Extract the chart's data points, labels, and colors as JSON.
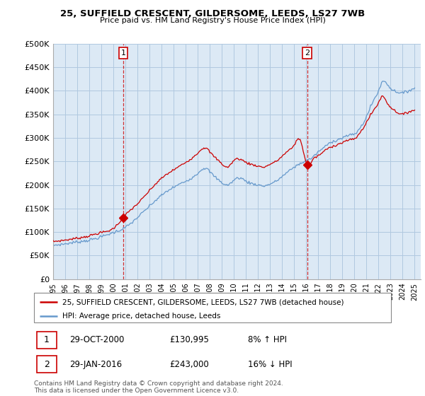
{
  "title": "25, SUFFIELD CRESCENT, GILDERSOME, LEEDS, LS27 7WB",
  "subtitle": "Price paid vs. HM Land Registry's House Price Index (HPI)",
  "background_color": "#ffffff",
  "plot_bg_color": "#dce9f5",
  "grid_color": "#b0c8e0",
  "ylim": [
    0,
    500000
  ],
  "yticks": [
    0,
    50000,
    100000,
    150000,
    200000,
    250000,
    300000,
    350000,
    400000,
    450000,
    500000
  ],
  "ytick_labels": [
    "£0",
    "£50K",
    "£100K",
    "£150K",
    "£200K",
    "£250K",
    "£300K",
    "£350K",
    "£400K",
    "£450K",
    "£500K"
  ],
  "hpi_color": "#6699cc",
  "price_color": "#cc0000",
  "marker_color": "#cc0000",
  "vline_color": "#cc0000",
  "annotation_box_color": "#cc0000",
  "legend_label_price": "25, SUFFIELD CRESCENT, GILDERSOME, LEEDS, LS27 7WB (detached house)",
  "legend_label_hpi": "HPI: Average price, detached house, Leeds",
  "sale1_date": "29-OCT-2000",
  "sale1_price": "£130,995",
  "sale1_hpi": "8% ↑ HPI",
  "sale2_date": "29-JAN-2016",
  "sale2_price": "£243,000",
  "sale2_hpi": "16% ↓ HPI",
  "footnote": "Contains HM Land Registry data © Crown copyright and database right 2024.\nThis data is licensed under the Open Government Licence v3.0.",
  "sale1_x": 2000.83,
  "sale1_y": 130995,
  "sale2_x": 2016.08,
  "sale2_y": 243000,
  "xmin": 1995,
  "xmax": 2025.5
}
